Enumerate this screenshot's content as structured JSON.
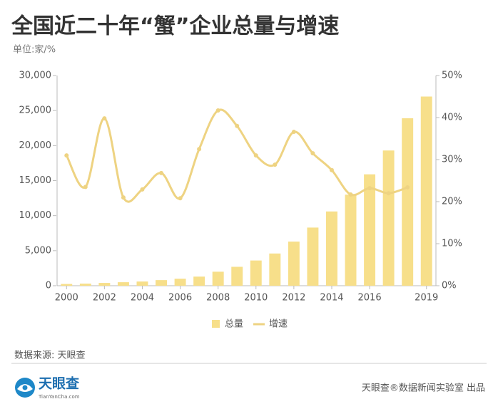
{
  "chart_data": {
    "type": "bar_line",
    "title": "全国近二十年“蟹”企业总量与增速",
    "subtitle": "单位:家/%",
    "x": [
      2000,
      2001,
      2002,
      2003,
      2004,
      2005,
      2006,
      2007,
      2008,
      2009,
      2010,
      2011,
      2012,
      2013,
      2014,
      2015,
      2016,
      2017,
      2018,
      2019
    ],
    "xticks": [
      2000,
      2002,
      2004,
      2006,
      2008,
      2010,
      2012,
      2014,
      2016,
      2019
    ],
    "xlim": [
      1999.5,
      2019.5
    ],
    "series": [
      {
        "name": "总量",
        "type": "bar",
        "color": "#f7df8a",
        "values": [
          250,
          300,
          400,
          500,
          600,
          800,
          1000,
          1300,
          2000,
          2700,
          3600,
          4600,
          6300,
          8300,
          10600,
          13000,
          15900,
          19300,
          23900,
          27000
        ]
      },
      {
        "name": "增速",
        "type": "line",
        "axis": "y2",
        "color": "#eed382",
        "values": [
          31,
          23.5,
          39.8,
          21,
          22.9,
          26.8,
          20.8,
          32.5,
          41.7,
          38,
          31,
          28.8,
          36.6,
          31.5,
          27.5,
          21.7,
          23.2,
          22,
          23.4,
          null
        ]
      }
    ],
    "ylim": [
      0,
      30000
    ],
    "yticks": [
      0,
      {
        "value": 5000,
        "label": "5,000"
      },
      {
        "value": 10000,
        "label": "10,000"
      },
      {
        "value": 15000,
        "label": "15,000"
      },
      {
        "value": 20000,
        "label": "20,000"
      },
      {
        "value": 25000,
        "label": "25,000"
      },
      {
        "value": 30000,
        "label": "30,000"
      }
    ],
    "y2lim": [
      0,
      50
    ],
    "y2ticks": [
      {
        "value": 0,
        "label": "0%"
      },
      {
        "value": 10,
        "label": "10%"
      },
      {
        "value": 20,
        "label": "20%"
      },
      {
        "value": 30,
        "label": "30%"
      },
      {
        "value": 40,
        "label": "40%"
      },
      {
        "value": 50,
        "label": "50%"
      }
    ],
    "legend": "bottom",
    "source": "数据来源: 天眼查",
    "logo": {
      "name": "天眼查",
      "url": "TianYanCha.com"
    },
    "credit": "天眼查®数据新闻实验室 出品"
  }
}
